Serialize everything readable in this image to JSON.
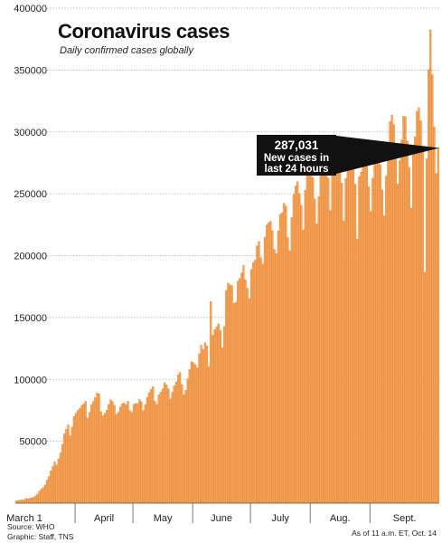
{
  "chart_data": {
    "type": "bar",
    "title": "Coronavirus cases",
    "subtitle": "Daily confirmed cases globally",
    "y_ticks": [
      50000,
      100000,
      150000,
      200000,
      250000,
      300000,
      350000,
      400000
    ],
    "ylim": [
      0,
      400000
    ],
    "grid": true,
    "x_labels": [
      "March 1",
      "April",
      "May",
      "June",
      "July",
      "Aug.",
      "Sept."
    ],
    "x_label_days": [
      0,
      31,
      61,
      92,
      122,
      153,
      184
    ],
    "start_date": "2020-03-01",
    "bar_color": "#f5a35a",
    "bar_edge_color": "#e07a1e",
    "values": [
      1800,
      2200,
      2500,
      2800,
      2400,
      3800,
      3600,
      3900,
      4200,
      4700,
      5800,
      7300,
      9600,
      11300,
      12600,
      14900,
      18700,
      21500,
      26100,
      29900,
      33600,
      30800,
      35800,
      40600,
      47500,
      56100,
      59800,
      63300,
      54400,
      61600,
      70100,
      72700,
      74900,
      76600,
      79000,
      80200,
      82300,
      68700,
      73400,
      79600,
      82100,
      85200,
      89000,
      88300,
      73900,
      70800,
      72600,
      75200,
      79700,
      83500,
      82300,
      79100,
      71800,
      73500,
      77600,
      80200,
      81200,
      79500,
      82400,
      74800,
      73300,
      79900,
      80500,
      80200,
      83900,
      82000,
      74700,
      79600,
      85500,
      89300,
      92000,
      94100,
      82400,
      79900,
      87600,
      89800,
      92400,
      97300,
      95600,
      92500,
      84200,
      89600,
      94800,
      98000,
      103600,
      105600,
      95800,
      87600,
      91200,
      100400,
      108100,
      114300,
      113600,
      112000,
      109400,
      120600,
      127700,
      124300,
      129600,
      127100,
      110400,
      162900,
      135700,
      140200,
      142400,
      144900,
      139700,
      125600,
      142800,
      171900,
      177900,
      176500,
      175800,
      161300,
      162400,
      179300,
      181600,
      186100,
      192200,
      180400,
      173700,
      165300,
      188800,
      194400,
      196400,
      208000,
      211500,
      198500,
      193300,
      214700,
      224700,
      226600,
      227800,
      220200,
      205100,
      201600,
      220100,
      233400,
      234700,
      242300,
      239900,
      214700,
      203800,
      230800,
      249400,
      256300,
      259800,
      250300,
      240800,
      220800,
      252800,
      267700,
      279000,
      291600,
      263000,
      245900,
      225600,
      247700,
      269500,
      286100,
      286800,
      272800,
      262800,
      236400,
      270000,
      281400,
      292400,
      290800,
      278800,
      258700,
      228000,
      262400,
      278800,
      283500,
      287400,
      280200,
      257800,
      213500,
      263800,
      267700,
      293200,
      291800,
      277200,
      255900,
      235700,
      262800,
      277600,
      290700,
      285800,
      273600,
      253200,
      232200,
      264300,
      279900,
      308300,
      313600,
      306000,
      281400,
      257900,
      276800,
      293400,
      312900,
      312000,
      292700,
      271400,
      238400,
      287200,
      296100,
      316600,
      319600,
      309100,
      286500,
      186600,
      278300,
      350100,
      382400,
      346200,
      303800,
      266500,
      287031
    ],
    "callout": {
      "value_label": "287,031",
      "line1": "New cases in",
      "line2": "last 24 hours",
      "value": 287031
    },
    "source": "Source: WHO",
    "credit": "Graphic: Staff, TNS",
    "as_of": "As of 11 a.m. ET, Oct. 14"
  }
}
